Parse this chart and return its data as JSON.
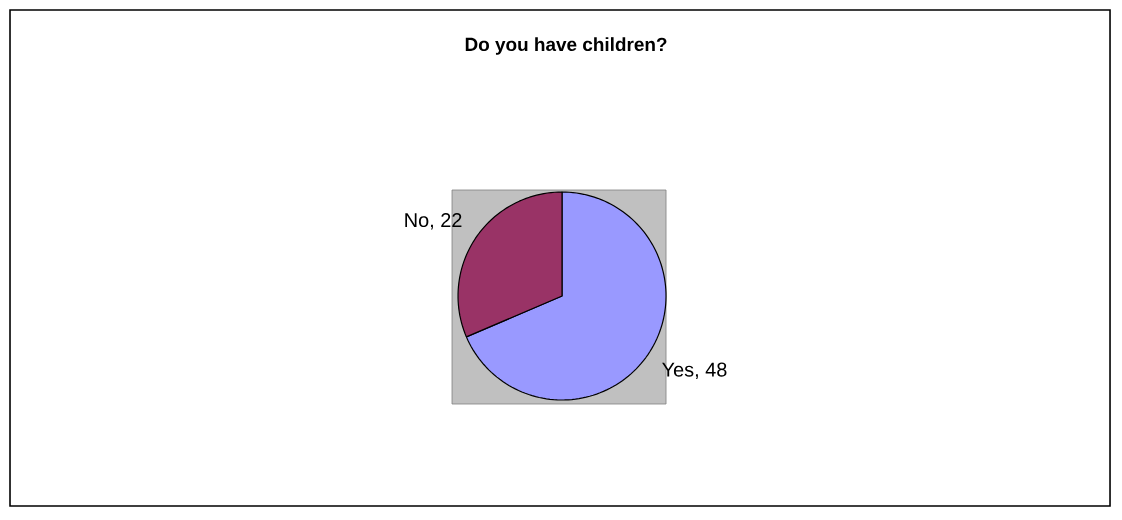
{
  "chart_data": {
    "type": "pie",
    "title": "Do you have children?",
    "categories": [
      "Yes",
      "No"
    ],
    "values": [
      48,
      22
    ],
    "colors": [
      "#9999ff",
      "#993366"
    ],
    "value_labels": [
      ", 48",
      ", 22"
    ]
  }
}
